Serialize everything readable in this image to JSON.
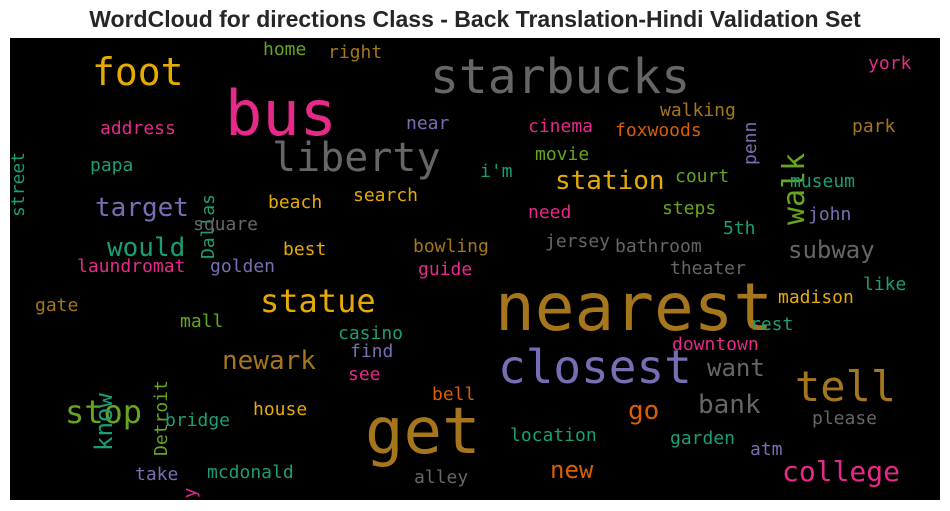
{
  "chart_data": {
    "type": "wordcloud",
    "title": "WordCloud for directions Class - Back Translation-Hindi Validation Set",
    "background": "#000000",
    "colormap": "Dark2",
    "palette": [
      "#1b9e77",
      "#d95f02",
      "#7570b3",
      "#e7298a",
      "#66a61e",
      "#e6ab02",
      "#a6761d",
      "#666666"
    ],
    "words": [
      {
        "text": "nearest",
        "color": "#a6761d",
        "orientation": "horizontal"
      },
      {
        "text": "get",
        "color": "#a6761d",
        "orientation": "horizontal"
      },
      {
        "text": "bus",
        "color": "#e7298a",
        "orientation": "horizontal"
      },
      {
        "text": "starbucks",
        "color": "#666666",
        "orientation": "horizontal"
      },
      {
        "text": "closest",
        "color": "#7570b3",
        "orientation": "horizontal"
      },
      {
        "text": "liberty",
        "color": "#666666",
        "orientation": "horizontal"
      },
      {
        "text": "tell",
        "color": "#a6761d",
        "orientation": "horizontal"
      },
      {
        "text": "foot",
        "color": "#e6ab02",
        "orientation": "horizontal"
      },
      {
        "text": "walk",
        "color": "#66a61e",
        "orientation": "vertical"
      },
      {
        "text": "statue",
        "color": "#e6ab02",
        "orientation": "horizontal"
      },
      {
        "text": "stop",
        "color": "#66a61e",
        "orientation": "horizontal"
      },
      {
        "text": "station",
        "color": "#e6ab02",
        "orientation": "horizontal"
      },
      {
        "text": "target",
        "color": "#7570b3",
        "orientation": "horizontal"
      },
      {
        "text": "newark",
        "color": "#a6761d",
        "orientation": "horizontal"
      },
      {
        "text": "college",
        "color": "#e7298a",
        "orientation": "horizontal"
      },
      {
        "text": "would",
        "color": "#1b9e77",
        "orientation": "horizontal"
      },
      {
        "text": "know",
        "color": "#1b9e77",
        "orientation": "vertical"
      },
      {
        "text": "subway",
        "color": "#666666",
        "orientation": "horizontal"
      },
      {
        "text": "bank",
        "color": "#666666",
        "orientation": "horizontal"
      },
      {
        "text": "want",
        "color": "#666666",
        "orientation": "horizontal"
      },
      {
        "text": "new",
        "color": "#d95f02",
        "orientation": "horizontal"
      },
      {
        "text": "go",
        "color": "#d95f02",
        "orientation": "horizontal"
      },
      {
        "text": "york",
        "color": "#e7298a",
        "orientation": "horizontal"
      },
      {
        "text": "right",
        "color": "#a6761d",
        "orientation": "horizontal"
      },
      {
        "text": "home",
        "color": "#66a61e",
        "orientation": "horizontal"
      },
      {
        "text": "penn",
        "color": "#7570b3",
        "orientation": "vertical"
      },
      {
        "text": "walking",
        "color": "#a6761d",
        "orientation": "horizontal"
      },
      {
        "text": "street",
        "color": "#1b9e77",
        "orientation": "vertical"
      },
      {
        "text": "address",
        "color": "#e7298a",
        "orientation": "horizontal"
      },
      {
        "text": "near",
        "color": "#7570b3",
        "orientation": "horizontal"
      },
      {
        "text": "cinema",
        "color": "#e7298a",
        "orientation": "horizontal"
      },
      {
        "text": "foxwoods",
        "color": "#d95f02",
        "orientation": "horizontal"
      },
      {
        "text": "park",
        "color": "#a6761d",
        "orientation": "horizontal"
      },
      {
        "text": "papa",
        "color": "#1b9e77",
        "orientation": "horizontal"
      },
      {
        "text": "Dallas",
        "color": "#1b9e77",
        "orientation": "vertical"
      },
      {
        "text": "i'm",
        "color": "#1b9e77",
        "orientation": "horizontal"
      },
      {
        "text": "movie",
        "color": "#66a61e",
        "orientation": "horizontal"
      },
      {
        "text": "court",
        "color": "#66a61e",
        "orientation": "horizontal"
      },
      {
        "text": "museum",
        "color": "#1b9e77",
        "orientation": "horizontal"
      },
      {
        "text": "search",
        "color": "#e6ab02",
        "orientation": "horizontal"
      },
      {
        "text": "beach",
        "color": "#e6ab02",
        "orientation": "horizontal"
      },
      {
        "text": "steps",
        "color": "#66a61e",
        "orientation": "horizontal"
      },
      {
        "text": "need",
        "color": "#e7298a",
        "orientation": "horizontal"
      },
      {
        "text": "john",
        "color": "#7570b3",
        "orientation": "horizontal"
      },
      {
        "text": "square",
        "color": "#666666",
        "orientation": "horizontal"
      },
      {
        "text": "5th",
        "color": "#1b9e77",
        "orientation": "horizontal"
      },
      {
        "text": "jersey",
        "color": "#666666",
        "orientation": "horizontal"
      },
      {
        "text": "bathroom",
        "color": "#666666",
        "orientation": "horizontal"
      },
      {
        "text": "best",
        "color": "#e6ab02",
        "orientation": "horizontal"
      },
      {
        "text": "bowling",
        "color": "#a6761d",
        "orientation": "horizontal"
      },
      {
        "text": "laundromat",
        "color": "#e7298a",
        "orientation": "horizontal"
      },
      {
        "text": "golden",
        "color": "#7570b3",
        "orientation": "horizontal"
      },
      {
        "text": "guide",
        "color": "#e7298a",
        "orientation": "horizontal"
      },
      {
        "text": "theater",
        "color": "#666666",
        "orientation": "horizontal"
      },
      {
        "text": "like",
        "color": "#1b9e77",
        "orientation": "horizontal"
      },
      {
        "text": "madison",
        "color": "#e6ab02",
        "orientation": "horizontal"
      },
      {
        "text": "gate",
        "color": "#a6761d",
        "orientation": "horizontal"
      },
      {
        "text": "mall",
        "color": "#66a61e",
        "orientation": "horizontal"
      },
      {
        "text": "Detroit",
        "color": "#66a61e",
        "orientation": "vertical"
      },
      {
        "text": "casino",
        "color": "#1b9e77",
        "orientation": "horizontal"
      },
      {
        "text": "rest",
        "color": "#1b9e77",
        "orientation": "horizontal"
      },
      {
        "text": "find",
        "color": "#7570b3",
        "orientation": "horizontal"
      },
      {
        "text": "downtown",
        "color": "#e7298a",
        "orientation": "horizontal"
      },
      {
        "text": "see",
        "color": "#e7298a",
        "orientation": "horizontal"
      },
      {
        "text": "bell",
        "color": "#d95f02",
        "orientation": "horizontal"
      },
      {
        "text": "house",
        "color": "#e6ab02",
        "orientation": "horizontal"
      },
      {
        "text": "bridge",
        "color": "#1b9e77",
        "orientation": "horizontal"
      },
      {
        "text": "please",
        "color": "#666666",
        "orientation": "horizontal"
      },
      {
        "text": "location",
        "color": "#1b9e77",
        "orientation": "horizontal"
      },
      {
        "text": "garden",
        "color": "#1b9e77",
        "orientation": "horizontal"
      },
      {
        "text": "atm",
        "color": "#7570b3",
        "orientation": "horizontal"
      },
      {
        "text": "take",
        "color": "#7570b3",
        "orientation": "horizontal"
      },
      {
        "text": "way",
        "color": "#e7298a",
        "orientation": "vertical"
      },
      {
        "text": "mcdonald",
        "color": "#1b9e77",
        "orientation": "horizontal"
      },
      {
        "text": "alley",
        "color": "#666666",
        "orientation": "horizontal"
      }
    ]
  }
}
